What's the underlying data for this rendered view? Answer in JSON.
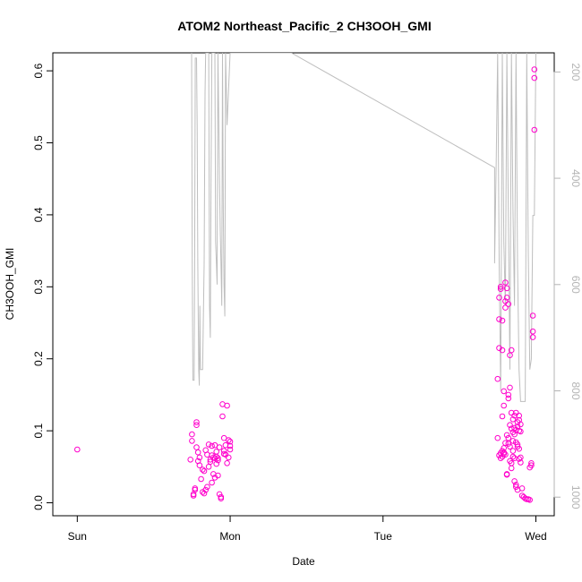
{
  "chart_data": {
    "type": "scatter",
    "title": "ATOM2 Northeast_Pacific_2 CH3OOH_GMI",
    "xlabel": "Date",
    "ylabel": "CH3OOH_GMI",
    "x_ticks": [
      {
        "day": 0,
        "label": "Sun"
      },
      {
        "day": 1,
        "label": "Mon"
      },
      {
        "day": 2,
        "label": "Tue"
      },
      {
        "day": 3,
        "label": "Wed"
      }
    ],
    "y_ticks": [
      "0.0",
      "0.1",
      "0.2",
      "0.3",
      "0.4",
      "0.5",
      "0.6"
    ],
    "y_tick_values": [
      0,
      0.1,
      0.2,
      0.3,
      0.4,
      0.5,
      0.6
    ],
    "right_ticks": [
      "200",
      "400",
      "600",
      "800",
      "1000"
    ],
    "right_tick_values": [
      200,
      400,
      600,
      800,
      1000
    ],
    "xlim_days": [
      -0.16,
      3.12
    ],
    "ylim": [
      -0.018,
      0.625
    ],
    "right_ylim": [
      1035,
      164
    ],
    "colors": {
      "points": "#ff00cc",
      "pressure_line": "#bebebe",
      "right_axis": "#b4b4b4",
      "axis": "#000000"
    },
    "series": [
      {
        "type": "scatter",
        "axis": "left",
        "points": [
          [
            0.0,
            0.074
          ],
          [
            0.74,
            0.06
          ],
          [
            0.75,
            0.095
          ],
          [
            0.75,
            0.086
          ],
          [
            0.76,
            0.01
          ],
          [
            0.76,
            0.012
          ],
          [
            0.77,
            0.02
          ],
          [
            0.77,
            0.018
          ],
          [
            0.78,
            0.112
          ],
          [
            0.78,
            0.108
          ],
          [
            0.79,
            0.058
          ],
          [
            0.79,
            0.07
          ],
          [
            0.8,
            0.063
          ],
          [
            0.81,
            0.033
          ],
          [
            0.82,
            0.015
          ],
          [
            0.83,
            0.013
          ],
          [
            0.84,
            0.018
          ],
          [
            0.85,
            0.022
          ],
          [
            0.85,
            0.067
          ],
          [
            0.86,
            0.081
          ],
          [
            0.86,
            0.05
          ],
          [
            0.87,
            0.057
          ],
          [
            0.87,
            0.06
          ],
          [
            0.88,
            0.066
          ],
          [
            0.88,
            0.079
          ],
          [
            0.89,
            0.04
          ],
          [
            0.89,
            0.063
          ],
          [
            0.9,
            0.062
          ],
          [
            0.9,
            0.08
          ],
          [
            0.9,
            0.035
          ],
          [
            0.91,
            0.054
          ],
          [
            0.91,
            0.064
          ],
          [
            0.92,
            0.059
          ],
          [
            0.92,
            0.062
          ],
          [
            0.93,
            0.077
          ],
          [
            0.93,
            0.012
          ],
          [
            0.94,
            0.008
          ],
          [
            0.94,
            0.006
          ],
          [
            0.95,
            0.137
          ],
          [
            0.95,
            0.12
          ],
          [
            0.96,
            0.072
          ],
          [
            0.96,
            0.09
          ],
          [
            0.97,
            0.067
          ],
          [
            0.97,
            0.08
          ],
          [
            0.98,
            0.135
          ],
          [
            0.98,
            0.055
          ],
          [
            0.99,
            0.087
          ],
          [
            0.99,
            0.063
          ],
          [
            1.0,
            0.085
          ],
          [
            1.0,
            0.079
          ],
          [
            1.0,
            0.074
          ],
          [
            0.8,
            0.052
          ],
          [
            0.82,
            0.046
          ],
          [
            0.84,
            0.073
          ],
          [
            0.88,
            0.028
          ],
          [
            0.92,
            0.038
          ],
          [
            0.96,
            0.068
          ],
          [
            0.78,
            0.077
          ],
          [
            0.83,
            0.044
          ],
          [
            0.91,
            0.071
          ],
          [
            2.75,
            0.172
          ],
          [
            2.75,
            0.09
          ],
          [
            2.76,
            0.215
          ],
          [
            2.76,
            0.255
          ],
          [
            2.76,
            0.285
          ],
          [
            2.77,
            0.297
          ],
          [
            2.77,
            0.3
          ],
          [
            2.78,
            0.212
          ],
          [
            2.78,
            0.253
          ],
          [
            2.78,
            0.12
          ],
          [
            2.79,
            0.135
          ],
          [
            2.79,
            0.068
          ],
          [
            2.8,
            0.306
          ],
          [
            2.8,
            0.28
          ],
          [
            2.8,
            0.271
          ],
          [
            2.81,
            0.298
          ],
          [
            2.81,
            0.285
          ],
          [
            2.82,
            0.276
          ],
          [
            2.82,
            0.15
          ],
          [
            2.82,
            0.145
          ],
          [
            2.83,
            0.205
          ],
          [
            2.83,
            0.16
          ],
          [
            2.84,
            0.212
          ],
          [
            2.84,
            0.103
          ],
          [
            2.85,
            0.116
          ],
          [
            2.85,
            0.098
          ],
          [
            2.86,
            0.121
          ],
          [
            2.86,
            0.104
          ],
          [
            2.87,
            0.101
          ],
          [
            2.87,
            0.084
          ],
          [
            2.88,
            0.106
          ],
          [
            2.88,
            0.112
          ],
          [
            2.89,
            0.1
          ],
          [
            2.89,
            0.121
          ],
          [
            2.9,
            0.109
          ],
          [
            2.9,
            0.099
          ],
          [
            2.91,
            0.02
          ],
          [
            2.91,
            0.01
          ],
          [
            2.92,
            0.008
          ],
          [
            2.93,
            0.006
          ],
          [
            2.94,
            0.005
          ],
          [
            2.95,
            0.005
          ],
          [
            2.96,
            0.004
          ],
          [
            2.96,
            0.049
          ],
          [
            2.97,
            0.055
          ],
          [
            2.97,
            0.052
          ],
          [
            2.98,
            0.26
          ],
          [
            2.98,
            0.238
          ],
          [
            2.98,
            0.23
          ],
          [
            2.99,
            0.602
          ],
          [
            2.99,
            0.59
          ],
          [
            2.99,
            0.518
          ],
          [
            2.76,
            0.066
          ],
          [
            2.77,
            0.062
          ],
          [
            2.77,
            0.069
          ],
          [
            2.78,
            0.064
          ],
          [
            2.78,
            0.072
          ],
          [
            2.79,
            0.076
          ],
          [
            2.79,
            0.07
          ],
          [
            2.8,
            0.067
          ],
          [
            2.8,
            0.083
          ],
          [
            2.81,
            0.04
          ],
          [
            2.81,
            0.039
          ],
          [
            2.82,
            0.082
          ],
          [
            2.82,
            0.09
          ],
          [
            2.83,
            0.078
          ],
          [
            2.83,
            0.058
          ],
          [
            2.84,
            0.055
          ],
          [
            2.84,
            0.048
          ],
          [
            2.85,
            0.064
          ],
          [
            2.85,
            0.072
          ],
          [
            2.86,
            0.062
          ],
          [
            2.86,
            0.03
          ],
          [
            2.87,
            0.025
          ],
          [
            2.87,
            0.022
          ],
          [
            2.88,
            0.018
          ],
          [
            2.88,
            0.081
          ],
          [
            2.89,
            0.061
          ],
          [
            2.89,
            0.075
          ],
          [
            2.9,
            0.063
          ],
          [
            2.9,
            0.056
          ],
          [
            2.81,
            0.094
          ],
          [
            2.83,
            0.108
          ],
          [
            2.85,
            0.086
          ],
          [
            2.87,
            0.125
          ],
          [
            2.89,
            0.115
          ],
          [
            2.79,
            0.155
          ],
          [
            2.84,
            0.125
          ],
          [
            2.86,
            0.095
          ],
          [
            2.88,
            0.078
          ]
        ]
      },
      {
        "type": "line",
        "axis": "right",
        "name": "pressure",
        "points": [
          [
            0.748,
            164
          ],
          [
            0.752,
            560
          ],
          [
            0.756,
            780
          ],
          [
            0.764,
            780
          ],
          [
            0.768,
            560
          ],
          [
            0.772,
            174
          ],
          [
            0.78,
            174
          ],
          [
            0.784,
            300
          ],
          [
            0.788,
            560
          ],
          [
            0.794,
            760
          ],
          [
            0.798,
            790
          ],
          [
            0.802,
            640
          ],
          [
            0.806,
            760
          ],
          [
            0.82,
            760
          ],
          [
            0.83,
            560
          ],
          [
            0.836,
            240
          ],
          [
            0.84,
            164
          ],
          [
            0.86,
            164
          ],
          [
            0.865,
            640
          ],
          [
            0.87,
            700
          ],
          [
            0.875,
            400
          ],
          [
            0.88,
            164
          ],
          [
            0.9,
            164
          ],
          [
            0.905,
            520
          ],
          [
            0.91,
            560
          ],
          [
            0.915,
            600
          ],
          [
            0.92,
            164
          ],
          [
            0.93,
            400
          ],
          [
            0.935,
            500
          ],
          [
            0.94,
            560
          ],
          [
            0.945,
            640
          ],
          [
            0.95,
            164
          ],
          [
            0.955,
            460
          ],
          [
            0.96,
            600
          ],
          [
            0.965,
            660
          ],
          [
            0.97,
            164
          ],
          [
            0.98,
            300
          ],
          [
            1.0,
            164
          ],
          [
            1.4,
            164
          ],
          [
            2.73,
            380
          ],
          [
            2.73,
            560
          ],
          [
            2.74,
            380
          ],
          [
            2.75,
            164
          ],
          [
            2.76,
            560
          ],
          [
            2.77,
            800
          ],
          [
            2.78,
            164
          ],
          [
            2.79,
            520
          ],
          [
            2.8,
            640
          ],
          [
            2.81,
            164
          ],
          [
            2.82,
            480
          ],
          [
            2.83,
            760
          ],
          [
            2.84,
            164
          ],
          [
            2.85,
            460
          ],
          [
            2.86,
            640
          ],
          [
            2.87,
            164
          ],
          [
            2.88,
            560
          ],
          [
            2.89,
            760
          ],
          [
            2.9,
            820
          ],
          [
            2.93,
            820
          ],
          [
            2.94,
            164
          ],
          [
            2.95,
            540
          ],
          [
            2.96,
            760
          ],
          [
            2.97,
            740
          ],
          [
            2.98,
            470
          ],
          [
            2.99,
            470
          ],
          [
            3.0,
            164
          ]
        ]
      }
    ]
  }
}
